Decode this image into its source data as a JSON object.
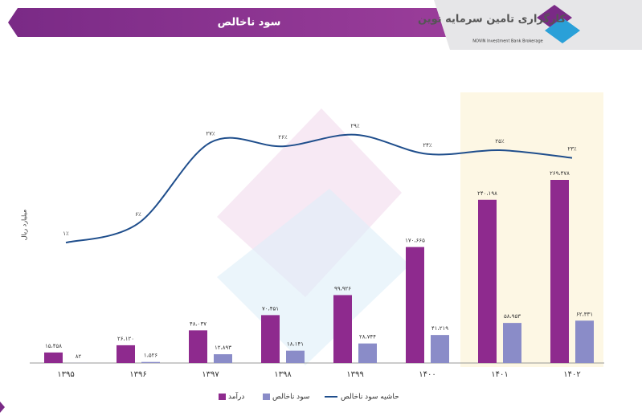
{
  "logo": {
    "name": "کارگزاری تامین سرمایه نوین",
    "english": "NOVIN Investment Bank Brokerage"
  },
  "chart_data": {
    "type": "bar_line",
    "title": "سود ناخالص",
    "y_label": "میلیارد ریال",
    "categories": [
      "۱۳۹۵",
      "۱۳۹۶",
      "۱۳۹۷",
      "۱۳۹۸",
      "۱۳۹۹",
      "۱۴۰۰",
      "۱۴۰۱",
      "۱۴۰۲"
    ],
    "series": [
      {
        "name": "درآمد",
        "color": "#8e2a8e",
        "values": [
          15458,
          26120,
          48037,
          70451,
          99926,
          170665,
          240198,
          269478
        ],
        "value_labels": [
          "۱۵،۴۵۸",
          "۲۶،۱۲۰",
          "۴۸،۰۳۷",
          "۷۰،۴۵۱",
          "۹۹،۹۲۶",
          "۱۷۰،۶۶۵",
          "۲۴۰،۱۹۸",
          "۲۶۹،۴۷۸"
        ]
      },
      {
        "name": "سود ناخالص",
        "color": "#8a8cc8",
        "values": [
          82,
          1526,
          12893,
          18141,
          28744,
          41219,
          58953,
          62331
        ],
        "value_labels": [
          "۸۲",
          "۱،۵۲۶",
          "۱۲،۸۹۳",
          "۱۸،۱۴۱",
          "۲۸،۷۴۴",
          "۴۱،۲۱۹",
          "۵۸،۹۵۳",
          "۶۲،۳۳۱"
        ]
      },
      {
        "name": "حاشیه سود ناخالص",
        "color": "#1f4e8c",
        "type": "line",
        "axis": "y2",
        "values": [
          1,
          6,
          27,
          26,
          29,
          24,
          25,
          23
        ],
        "value_labels": [
          "۱٪",
          "۶٪",
          "۲۷٪",
          "۲۶٪",
          "۲۹٪",
          "۲۴٪",
          "۲۵٪",
          "۲۳٪"
        ]
      }
    ]
  }
}
